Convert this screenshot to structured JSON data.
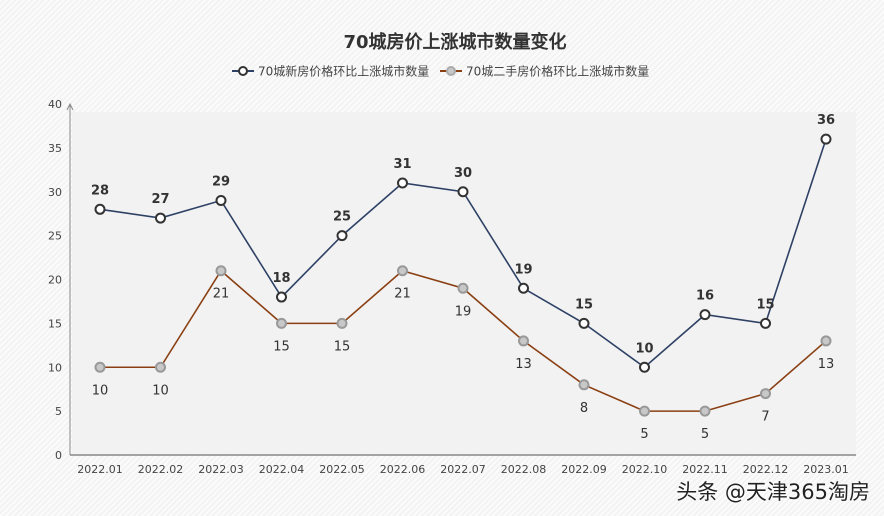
{
  "chart_data": {
    "type": "line",
    "title": "70城房价上涨城市数量变化",
    "categories": [
      "2022.01",
      "2022.02",
      "2022.03",
      "2022.04",
      "2022.05",
      "2022.06",
      "2022.07",
      "2022.08",
      "2022.09",
      "2022.10",
      "2022.11",
      "2022.12",
      "2023.01"
    ],
    "series": [
      {
        "name": "70城新房价格环比上涨城市数量",
        "values": [
          28,
          27,
          29,
          18,
          25,
          31,
          30,
          19,
          15,
          10,
          16,
          15,
          36
        ],
        "color": "#2e4165",
        "marker_fill": "#ffffff",
        "label_position": "above"
      },
      {
        "name": "70城二手房价格环比上涨城市数量",
        "values": [
          10,
          10,
          21,
          15,
          15,
          21,
          19,
          13,
          8,
          5,
          5,
          7,
          13
        ],
        "color": "#8a3f12",
        "marker_fill": "#c8c8c8",
        "label_position": "below"
      }
    ],
    "ylim": [
      0,
      40
    ],
    "yticks": [
      0,
      5,
      10,
      15,
      20,
      25,
      30,
      35,
      40
    ],
    "grid": false,
    "legend": "top-center"
  },
  "watermark": "头条 @天津365淘房"
}
